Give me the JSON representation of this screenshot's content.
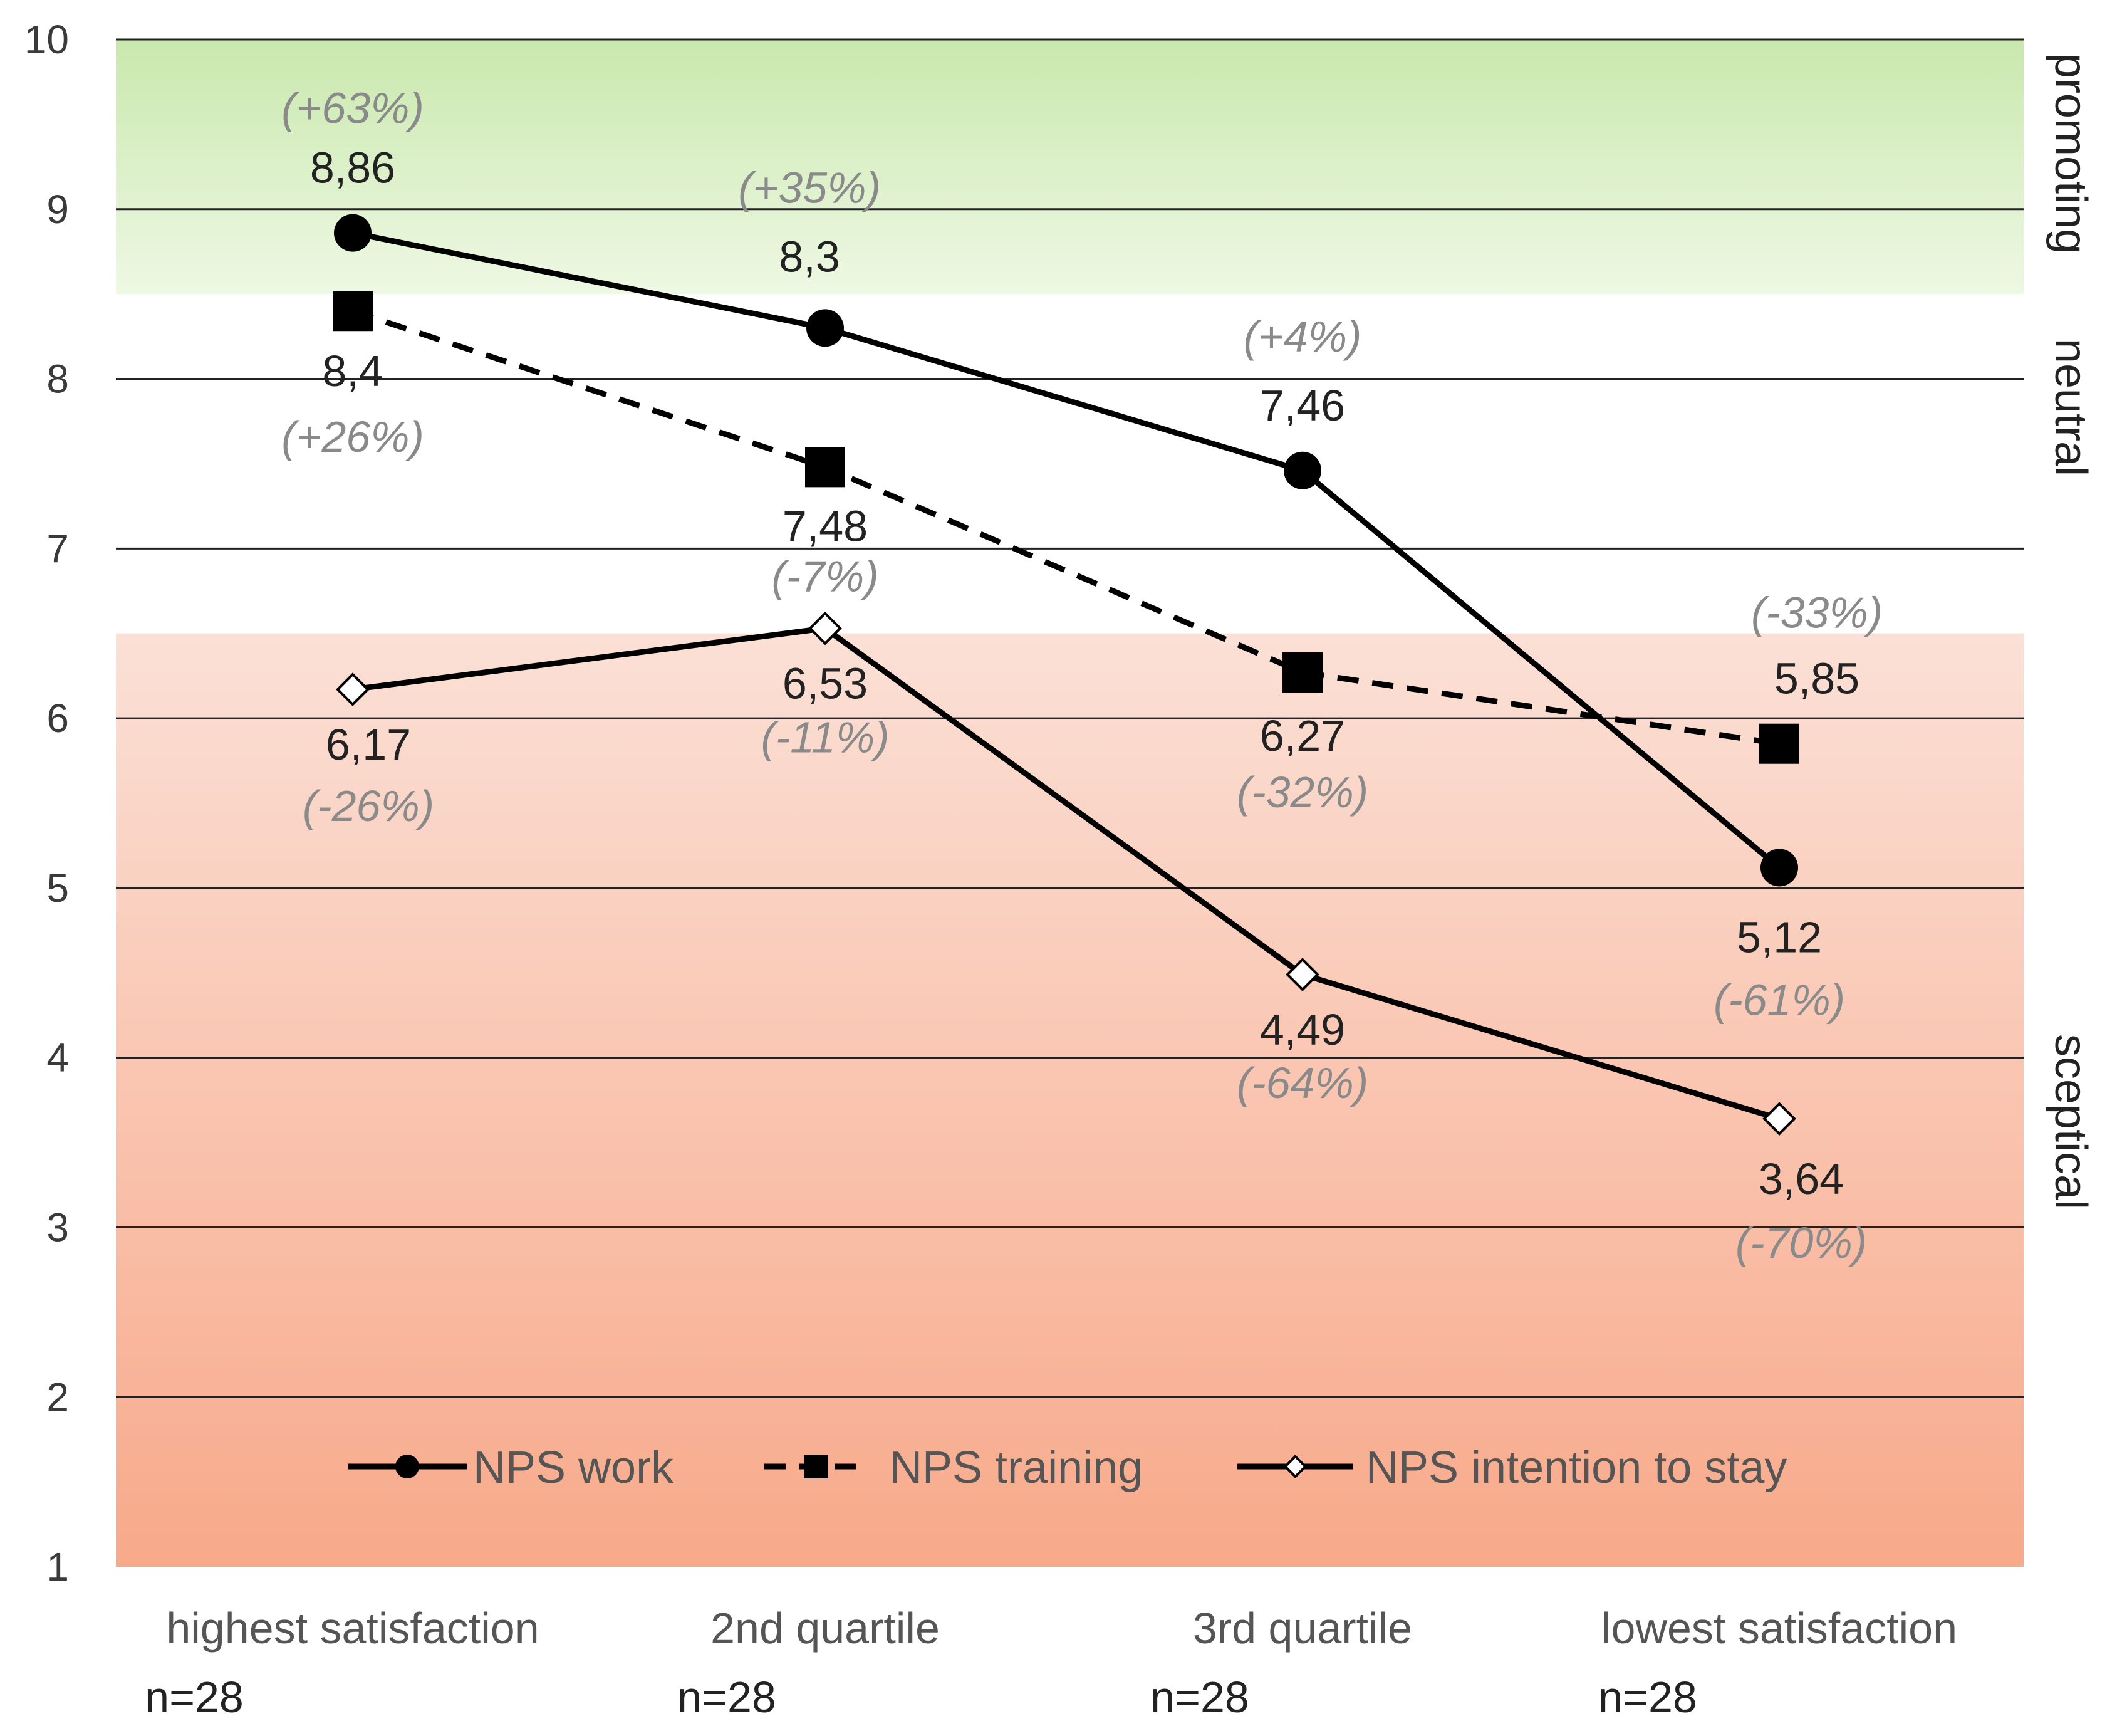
{
  "chart_data": {
    "type": "line",
    "ylim": [
      1,
      10
    ],
    "yticks": [
      1,
      2,
      3,
      4,
      5,
      6,
      7,
      8,
      9,
      10
    ],
    "grid": true,
    "legend_position": "bottom-center",
    "categories": [
      "highest satisfaction",
      "2nd quartile",
      "3rd quartile",
      "lowest satisfaction"
    ],
    "sample_sizes": [
      "n=28",
      "n=28",
      "n=28",
      "n=28"
    ],
    "zones": [
      {
        "name": "promoting",
        "from": 8.5,
        "to": 10,
        "color_top": "#c9e8ad",
        "color_bottom": "#eef8e4"
      },
      {
        "name": "neutral",
        "from": 6.5,
        "to": 8.5,
        "color_top": "#ffffff",
        "color_bottom": "#ffffff"
      },
      {
        "name": "sceptical",
        "from": 1,
        "to": 6.5,
        "color_top": "#fbe0d6",
        "color_bottom": "#f8a98a"
      }
    ],
    "series": [
      {
        "name": "NPS work",
        "marker": "circle",
        "dash": "solid",
        "values": [
          8.86,
          8.3,
          7.46,
          5.12
        ],
        "labels": [
          "8,86",
          "8,3",
          "7,46",
          "5,12"
        ],
        "pct": [
          "(+63%)",
          "(+35%)",
          "(+4%)",
          "(-61%)"
        ]
      },
      {
        "name": "NPS training",
        "marker": "square",
        "dash": "dashed",
        "values": [
          8.4,
          7.48,
          6.27,
          5.85
        ],
        "labels": [
          "8,4",
          "7,48",
          "6,27",
          "5,85"
        ],
        "pct": [
          "(+26%)",
          "(-7%)",
          "(-32%)",
          "(-33%)"
        ]
      },
      {
        "name": "NPS intention to stay",
        "marker": "diamond",
        "dash": "solid",
        "values": [
          6.17,
          6.53,
          4.49,
          3.64
        ],
        "labels": [
          "6,17",
          "6,53",
          "4,49",
          "3,64"
        ],
        "pct": [
          "(-26%)",
          "(-11%)",
          "(-64%)",
          "(-70%)"
        ]
      }
    ]
  }
}
